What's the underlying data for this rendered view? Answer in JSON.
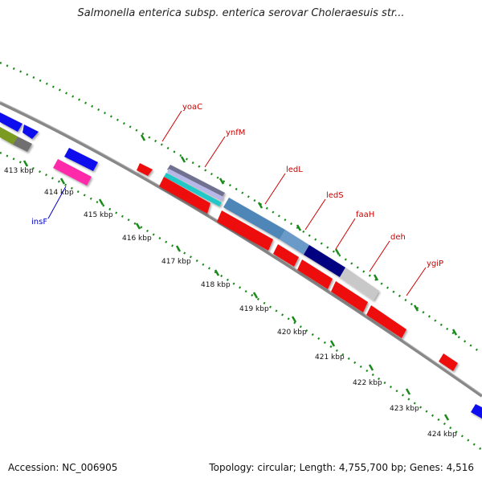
{
  "title": "Salmonella enterica subsp. enterica serovar Choleraesuis str...",
  "footer": {
    "accession": "Accession: NC_006905",
    "summary": "Topology: circular; Length: 4,755,700 bp; Genes: 4,516"
  },
  "ticks": [
    "413 kbp",
    "414 kbp",
    "415 kbp",
    "416 kbp",
    "417 kbp",
    "418 kbp",
    "419 kbp",
    "420 kbp",
    "421 kbp",
    "422 kbp",
    "423 kbp",
    "424 kbp"
  ],
  "gene_labels": [
    {
      "name": "yoaC",
      "color": "#cc0000"
    },
    {
      "name": "ynfM",
      "color": "#cc0000"
    },
    {
      "name": "ledL",
      "color": "#cc0000"
    },
    {
      "name": "ledS",
      "color": "#cc0000"
    },
    {
      "name": "faaH",
      "color": "#cc0000"
    },
    {
      "name": "deh",
      "color": "#cc0000"
    },
    {
      "name": "ygiP",
      "color": "#cc0000"
    },
    {
      "name": "insF",
      "color": "#0000cc"
    }
  ],
  "colors": {
    "backbone": "#888888",
    "dots": "#1a8a1a",
    "red": "#ee1111",
    "blue": "#1111ee",
    "olive": "#7a9a20",
    "magenta": "#ff2aaa",
    "steelblue": "#4f86b8",
    "navy": "#000080",
    "silver": "#c8c8c8",
    "teal": "#20c8c8",
    "slate": "#707090"
  }
}
